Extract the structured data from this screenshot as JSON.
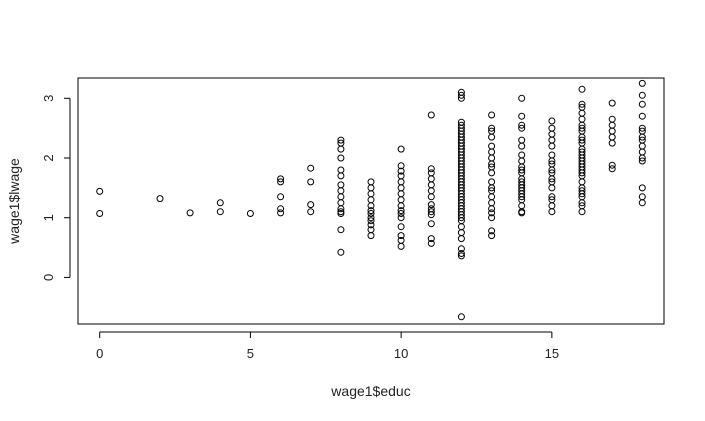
{
  "chart_data": {
    "type": "scatter",
    "title": "",
    "xlabel": "wage1$educ",
    "ylabel": "wage1$lwage",
    "xlim": [
      -0.72,
      18.72
    ],
    "ylim": [
      -0.78,
      3.34
    ],
    "x_ticks": [
      0,
      5,
      10,
      15
    ],
    "x_tick_labels": [
      "0",
      "5",
      "10",
      "15"
    ],
    "y_ticks": [
      0,
      1,
      2,
      3
    ],
    "y_tick_labels": [
      "0",
      "1",
      "2",
      "3"
    ],
    "grid": false,
    "marker": "open-circle",
    "series": [
      {
        "points": [
          [
            0,
            1.44
          ],
          [
            0,
            1.07
          ],
          [
            2,
            1.32
          ],
          [
            3,
            1.08
          ],
          [
            4,
            1.25
          ],
          [
            4,
            1.1
          ],
          [
            5,
            1.07
          ],
          [
            6,
            1.65
          ],
          [
            6,
            1.6
          ],
          [
            6,
            1.35
          ],
          [
            6,
            1.15
          ],
          [
            6,
            1.08
          ],
          [
            7,
            1.83
          ],
          [
            7,
            1.6
          ],
          [
            7,
            1.22
          ],
          [
            7,
            1.1
          ],
          [
            8,
            2.3
          ],
          [
            8,
            2.25
          ],
          [
            8,
            2.15
          ],
          [
            8,
            2.0
          ],
          [
            8,
            1.8
          ],
          [
            8,
            1.7
          ],
          [
            8,
            1.55
          ],
          [
            8,
            1.45
          ],
          [
            8,
            1.35
          ],
          [
            8,
            1.25
          ],
          [
            8,
            1.15
          ],
          [
            8,
            1.1
          ],
          [
            8,
            1.07
          ],
          [
            8,
            0.8
          ],
          [
            8,
            0.42
          ],
          [
            9,
            1.6
          ],
          [
            9,
            1.5
          ],
          [
            9,
            1.4
          ],
          [
            9,
            1.3
          ],
          [
            9,
            1.2
          ],
          [
            9,
            1.12
          ],
          [
            9,
            1.07
          ],
          [
            9,
            1.0
          ],
          [
            9,
            0.95
          ],
          [
            9,
            0.88
          ],
          [
            9,
            0.8
          ],
          [
            9,
            0.7
          ],
          [
            10,
            2.15
          ],
          [
            10,
            1.87
          ],
          [
            10,
            1.78
          ],
          [
            10,
            1.7
          ],
          [
            10,
            1.6
          ],
          [
            10,
            1.5
          ],
          [
            10,
            1.4
          ],
          [
            10,
            1.3
          ],
          [
            10,
            1.2
          ],
          [
            10,
            1.12
          ],
          [
            10,
            1.07
          ],
          [
            10,
            1.0
          ],
          [
            10,
            0.85
          ],
          [
            10,
            0.7
          ],
          [
            10,
            0.62
          ],
          [
            10,
            0.52
          ],
          [
            11,
            2.72
          ],
          [
            11,
            1.82
          ],
          [
            11,
            1.75
          ],
          [
            11,
            1.65
          ],
          [
            11,
            1.55
          ],
          [
            11,
            1.45
          ],
          [
            11,
            1.35
          ],
          [
            11,
            1.22
          ],
          [
            11,
            1.15
          ],
          [
            11,
            1.1
          ],
          [
            11,
            1.05
          ],
          [
            11,
            0.9
          ],
          [
            11,
            0.65
          ],
          [
            11,
            0.57
          ],
          [
            12,
            3.1
          ],
          [
            12,
            3.05
          ],
          [
            12,
            3.0
          ],
          [
            12,
            2.6
          ],
          [
            12,
            2.55
          ],
          [
            12,
            2.5
          ],
          [
            12,
            2.45
          ],
          [
            12,
            2.4
          ],
          [
            12,
            2.35
          ],
          [
            12,
            2.3
          ],
          [
            12,
            2.25
          ],
          [
            12,
            2.2
          ],
          [
            12,
            2.15
          ],
          [
            12,
            2.1
          ],
          [
            12,
            2.05
          ],
          [
            12,
            2.0
          ],
          [
            12,
            1.95
          ],
          [
            12,
            1.9
          ],
          [
            12,
            1.85
          ],
          [
            12,
            1.8
          ],
          [
            12,
            1.75
          ],
          [
            12,
            1.7
          ],
          [
            12,
            1.65
          ],
          [
            12,
            1.6
          ],
          [
            12,
            1.55
          ],
          [
            12,
            1.5
          ],
          [
            12,
            1.45
          ],
          [
            12,
            1.4
          ],
          [
            12,
            1.35
          ],
          [
            12,
            1.3
          ],
          [
            12,
            1.25
          ],
          [
            12,
            1.2
          ],
          [
            12,
            1.15
          ],
          [
            12,
            1.1
          ],
          [
            12,
            1.05
          ],
          [
            12,
            1.0
          ],
          [
            12,
            0.95
          ],
          [
            12,
            0.85
          ],
          [
            12,
            0.75
          ],
          [
            12,
            0.65
          ],
          [
            12,
            0.48
          ],
          [
            12,
            0.4
          ],
          [
            12,
            0.36
          ],
          [
            12,
            -0.66
          ],
          [
            13,
            2.72
          ],
          [
            13,
            2.5
          ],
          [
            13,
            2.45
          ],
          [
            13,
            2.35
          ],
          [
            13,
            2.2
          ],
          [
            13,
            2.1
          ],
          [
            13,
            2.0
          ],
          [
            13,
            1.9
          ],
          [
            13,
            1.85
          ],
          [
            13,
            1.75
          ],
          [
            13,
            1.6
          ],
          [
            13,
            1.5
          ],
          [
            13,
            1.45
          ],
          [
            13,
            1.35
          ],
          [
            13,
            1.25
          ],
          [
            13,
            1.15
          ],
          [
            13,
            1.08
          ],
          [
            13,
            1.0
          ],
          [
            13,
            0.78
          ],
          [
            13,
            0.7
          ],
          [
            14,
            3.0
          ],
          [
            14,
            2.7
          ],
          [
            14,
            2.55
          ],
          [
            14,
            2.5
          ],
          [
            14,
            2.3
          ],
          [
            14,
            2.2
          ],
          [
            14,
            2.05
          ],
          [
            14,
            1.95
          ],
          [
            14,
            1.85
          ],
          [
            14,
            1.8
          ],
          [
            14,
            1.75
          ],
          [
            14,
            1.65
          ],
          [
            14,
            1.6
          ],
          [
            14,
            1.55
          ],
          [
            14,
            1.5
          ],
          [
            14,
            1.45
          ],
          [
            14,
            1.4
          ],
          [
            14,
            1.35
          ],
          [
            14,
            1.3
          ],
          [
            14,
            1.2
          ],
          [
            14,
            1.1
          ],
          [
            14,
            1.08
          ],
          [
            15,
            2.62
          ],
          [
            15,
            2.5
          ],
          [
            15,
            2.4
          ],
          [
            15,
            2.3
          ],
          [
            15,
            2.2
          ],
          [
            15,
            2.05
          ],
          [
            15,
            1.95
          ],
          [
            15,
            1.9
          ],
          [
            15,
            1.8
          ],
          [
            15,
            1.75
          ],
          [
            15,
            1.65
          ],
          [
            15,
            1.6
          ],
          [
            15,
            1.5
          ],
          [
            15,
            1.35
          ],
          [
            15,
            1.3
          ],
          [
            15,
            1.2
          ],
          [
            15,
            1.1
          ],
          [
            16,
            3.15
          ],
          [
            16,
            2.9
          ],
          [
            16,
            2.85
          ],
          [
            16,
            2.75
          ],
          [
            16,
            2.65
          ],
          [
            16,
            2.55
          ],
          [
            16,
            2.5
          ],
          [
            16,
            2.45
          ],
          [
            16,
            2.35
          ],
          [
            16,
            2.3
          ],
          [
            16,
            2.25
          ],
          [
            16,
            2.15
          ],
          [
            16,
            2.1
          ],
          [
            16,
            2.05
          ],
          [
            16,
            2.0
          ],
          [
            16,
            1.95
          ],
          [
            16,
            1.9
          ],
          [
            16,
            1.85
          ],
          [
            16,
            1.8
          ],
          [
            16,
            1.75
          ],
          [
            16,
            1.7
          ],
          [
            16,
            1.6
          ],
          [
            16,
            1.5
          ],
          [
            16,
            1.45
          ],
          [
            16,
            1.4
          ],
          [
            16,
            1.35
          ],
          [
            16,
            1.25
          ],
          [
            16,
            1.2
          ],
          [
            16,
            1.1
          ],
          [
            17,
            2.92
          ],
          [
            17,
            2.65
          ],
          [
            17,
            2.55
          ],
          [
            17,
            2.45
          ],
          [
            17,
            2.35
          ],
          [
            17,
            2.25
          ],
          [
            17,
            1.88
          ],
          [
            17,
            1.82
          ],
          [
            18,
            3.25
          ],
          [
            18,
            3.05
          ],
          [
            18,
            2.9
          ],
          [
            18,
            2.7
          ],
          [
            18,
            2.5
          ],
          [
            18,
            2.45
          ],
          [
            18,
            2.35
          ],
          [
            18,
            2.3
          ],
          [
            18,
            2.2
          ],
          [
            18,
            2.1
          ],
          [
            18,
            2.0
          ],
          [
            18,
            1.95
          ],
          [
            18,
            1.5
          ],
          [
            18,
            1.35
          ],
          [
            18,
            1.25
          ]
        ]
      }
    ]
  }
}
